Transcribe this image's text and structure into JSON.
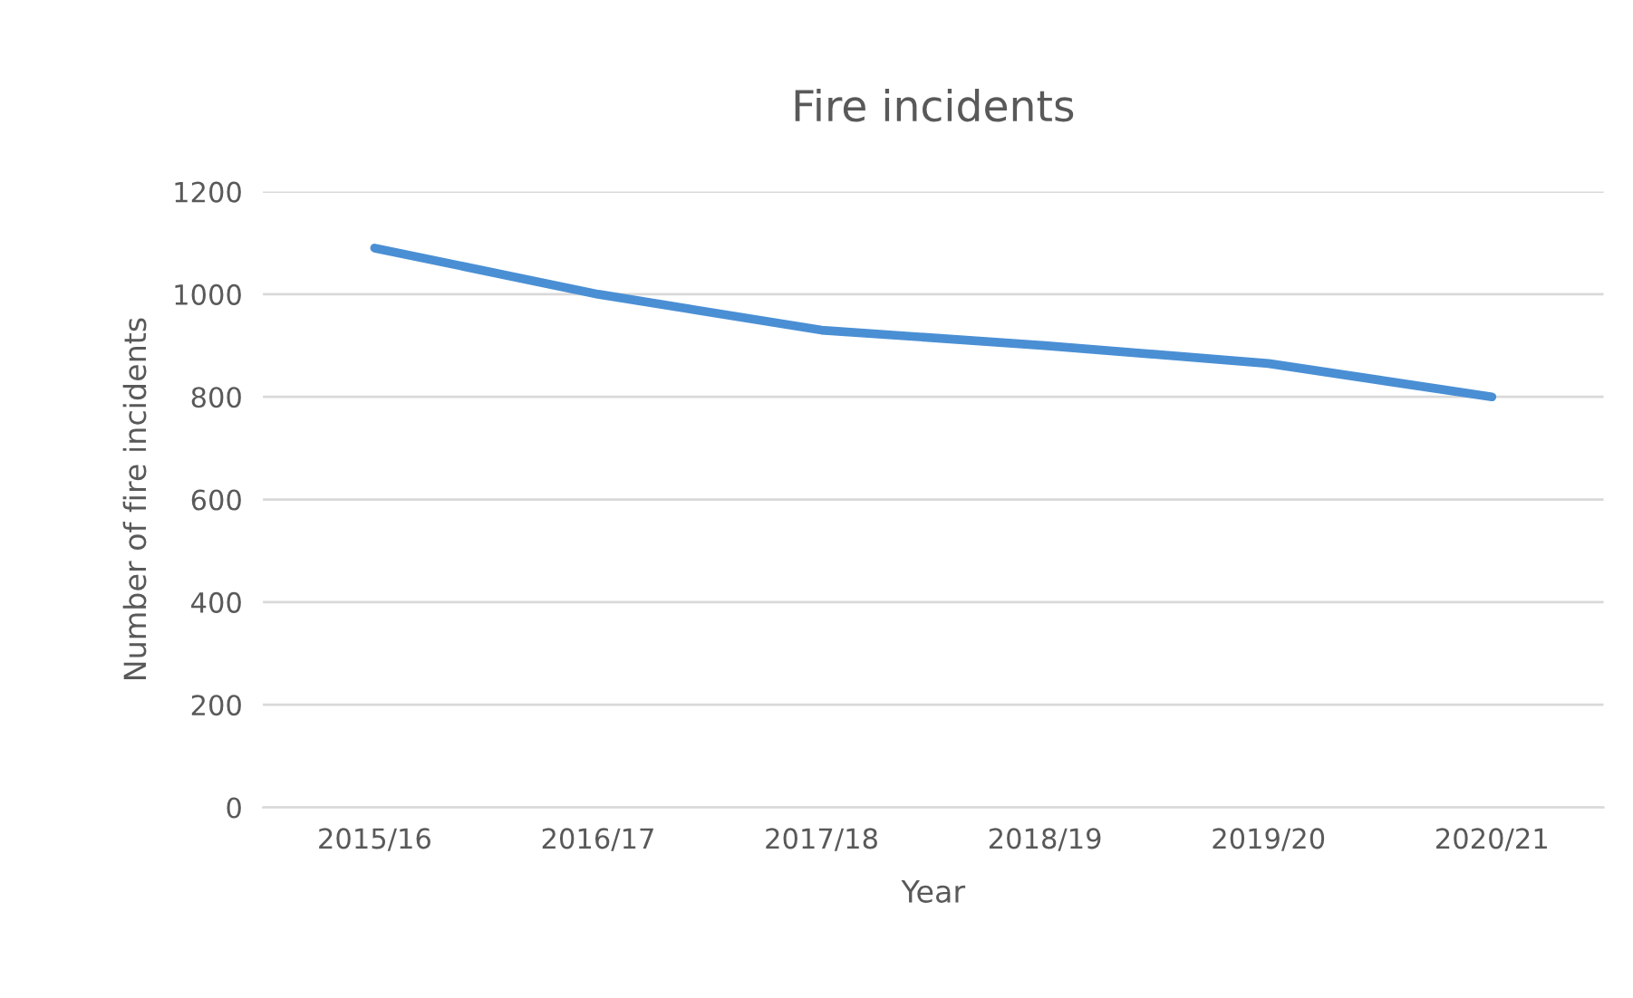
{
  "chart_data": {
    "type": "line",
    "title": "Fire incidents",
    "xlabel": "Year",
    "ylabel": "Number of fire incidents",
    "categories": [
      "2015/16",
      "2016/17",
      "2017/18",
      "2018/19",
      "2019/20",
      "2020/21"
    ],
    "series": [
      {
        "color": "#4a8fd4",
        "values": [
          1090,
          1000,
          930,
          900,
          865,
          800
        ]
      }
    ],
    "ylim": [
      0,
      1200
    ],
    "yticks": [
      0,
      200,
      400,
      600,
      800,
      1000,
      1200
    ],
    "grid": "y",
    "line_style": "solid"
  }
}
